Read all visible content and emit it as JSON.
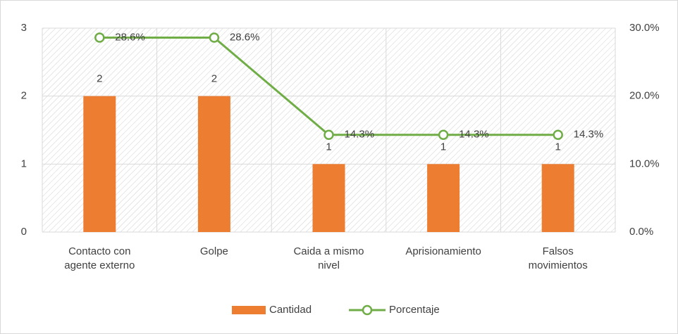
{
  "chart_data": {
    "type": "bar_line",
    "categories": [
      "Contacto con agente externo",
      "Golpe",
      "Caida a mismo nivel",
      "Aprisionamiento",
      "Falsos movimientos"
    ],
    "series": [
      {
        "name": "Cantidad",
        "color": "#ed7d31",
        "type": "bar",
        "values": [
          2,
          2,
          1,
          1,
          1
        ]
      },
      {
        "name": "Porcentaje",
        "color": "#70ad47",
        "type": "line",
        "axis": "y2",
        "values": [
          28.6,
          28.6,
          14.3,
          14.3,
          14.3
        ],
        "value_labels": [
          "28.6%",
          "28.6%",
          "14.3%",
          "14.3%",
          "14.3%"
        ]
      }
    ],
    "ylim": [
      0,
      3
    ],
    "yticks": [
      0,
      1,
      2,
      3
    ],
    "y2lim": [
      0,
      30
    ],
    "y2ticks": [
      {
        "value": 0,
        "label": "0.0%"
      },
      {
        "value": 10,
        "label": "10.0%"
      },
      {
        "value": 20,
        "label": "20.0%"
      },
      {
        "value": 30,
        "label": "30.0%"
      }
    ],
    "grid": true,
    "legend": "bottom"
  }
}
